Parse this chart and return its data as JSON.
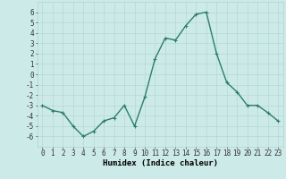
{
  "x": [
    0,
    1,
    2,
    3,
    4,
    5,
    6,
    7,
    8,
    9,
    10,
    11,
    12,
    13,
    14,
    15,
    16,
    17,
    18,
    19,
    20,
    21,
    22,
    23
  ],
  "y": [
    -3,
    -3.5,
    -3.7,
    -5.0,
    -6.0,
    -5.5,
    -4.5,
    -4.2,
    -3.0,
    -5.0,
    -2.2,
    1.5,
    3.5,
    3.3,
    4.7,
    5.8,
    6.0,
    2.0,
    -0.8,
    -1.7,
    -3.0,
    -3.0,
    -3.7,
    -4.5
  ],
  "line_color": "#2d7d6e",
  "marker": "+",
  "marker_size": 3,
  "linewidth": 1.0,
  "xlabel": "Humidex (Indice chaleur)",
  "xlim": [
    -0.5,
    23.5
  ],
  "ylim": [
    -7,
    7
  ],
  "xtick_labels": [
    "0",
    "1",
    "2",
    "3",
    "4",
    "5",
    "6",
    "7",
    "8",
    "9",
    "10",
    "11",
    "12",
    "13",
    "14",
    "15",
    "16",
    "17",
    "18",
    "19",
    "20",
    "21",
    "22",
    "23"
  ],
  "yticks": [
    -6,
    -5,
    -4,
    -3,
    -2,
    -1,
    0,
    1,
    2,
    3,
    4,
    5,
    6
  ],
  "background_color": "#cceae8",
  "grid_color": "#b0d4d2",
  "tick_fontsize": 5.5,
  "xlabel_fontsize": 6.5
}
